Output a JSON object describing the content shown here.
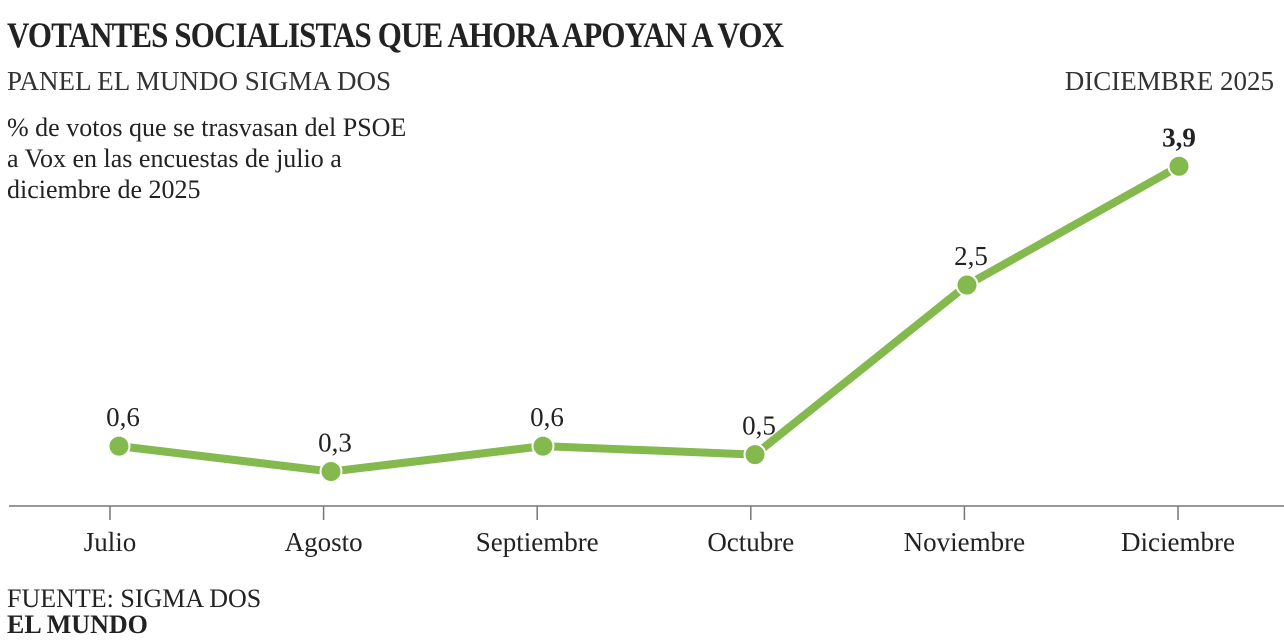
{
  "chart_data": {
    "type": "line",
    "title": "VOTANTES SOCIALISTAS QUE AHORA APOYAN A VOX",
    "subtitle": "PANEL EL MUNDO SIGMA DOS",
    "date_label": "DICIEMBRE 2025",
    "description": "% de votos que se trasvasan del PSOE a Vox en las encuestas de julio a diciembre de 2025",
    "categories": [
      "Julio",
      "Agosto",
      "Septiembre",
      "Octubre",
      "Noviembre",
      "Diciembre"
    ],
    "values": [
      0.6,
      0.3,
      0.6,
      0.5,
      2.5,
      3.9
    ],
    "labels": [
      "0,6",
      "0,3",
      "0,6",
      "0,5",
      "2,5",
      "3,9"
    ],
    "ylim": [
      0,
      4
    ],
    "grid": false,
    "color": "#84b94e"
  },
  "footer": {
    "source": "FUENTE: SIGMA DOS",
    "brand": "EL MUNDO"
  }
}
